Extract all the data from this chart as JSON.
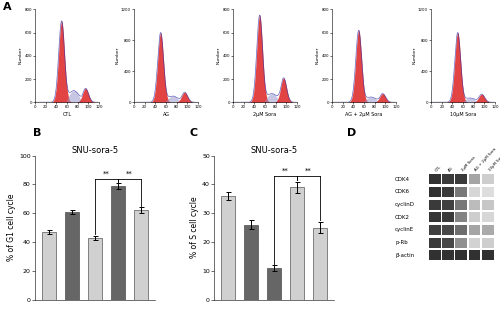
{
  "panel_A_labels": [
    "CTL",
    "AG",
    "2μM Sora",
    "AG + 2μM Sora",
    "10μM Sora"
  ],
  "panel_B_title": "SNU-sora-5",
  "panel_B_ylabel": "% of G1 cell cycle",
  "panel_B_values": [
    47,
    61,
    43,
    79,
    62
  ],
  "panel_B_errors": [
    1.5,
    1.5,
    1.5,
    2.0,
    2.0
  ],
  "panel_B_colors": [
    "#d0d0d0",
    "#666666",
    "#d0d0d0",
    "#666666",
    "#d0d0d0"
  ],
  "panel_B_yticks": [
    0,
    20,
    40,
    60,
    80,
    100
  ],
  "panel_B_ag": [
    "-",
    "+",
    "-",
    "+",
    "-"
  ],
  "panel_B_sora2": [
    "-",
    "-",
    "+",
    "+",
    "-"
  ],
  "panel_B_sora10": [
    "-",
    "-",
    "-",
    "-",
    "+"
  ],
  "panel_C_title": "SNU-sora-5",
  "panel_C_ylabel": "% of S cell cycle",
  "panel_C_values": [
    36,
    26,
    11,
    39,
    25
  ],
  "panel_C_errors": [
    1.5,
    1.5,
    1.0,
    2.0,
    2.0
  ],
  "panel_C_colors": [
    "#d0d0d0",
    "#666666",
    "#666666",
    "#d0d0d0",
    "#d0d0d0"
  ],
  "panel_C_yticks": [
    0,
    10,
    20,
    30,
    40,
    50
  ],
  "panel_C_ag": [
    "-",
    "+",
    "-",
    "+",
    "-"
  ],
  "panel_C_sora2": [
    "-",
    "-",
    "+",
    "+",
    "-"
  ],
  "panel_C_sora10": [
    "-",
    "-",
    "-",
    "-",
    "+"
  ],
  "panel_D_proteins": [
    "CDK4",
    "CDK6",
    "cyclinD",
    "CDK2",
    "cyclinE",
    "p-Rb",
    "β-actin"
  ],
  "panel_D_intensities": [
    [
      0.92,
      0.88,
      0.88,
      0.4,
      0.22
    ],
    [
      0.92,
      0.88,
      0.6,
      0.18,
      0.15
    ],
    [
      0.88,
      0.85,
      0.6,
      0.3,
      0.25
    ],
    [
      0.9,
      0.88,
      0.55,
      0.22,
      0.18
    ],
    [
      0.85,
      0.82,
      0.65,
      0.4,
      0.38
    ],
    [
      0.88,
      0.82,
      0.5,
      0.2,
      0.22
    ],
    [
      0.92,
      0.92,
      0.92,
      0.92,
      0.92
    ]
  ],
  "fcs_yticks_list": [
    [
      0,
      200,
      400,
      600,
      800
    ],
    [
      0,
      400,
      800,
      1200
    ],
    [
      0,
      200,
      400,
      600,
      800
    ],
    [
      0,
      200,
      400,
      600,
      800
    ],
    [
      0,
      400,
      800,
      1200
    ]
  ],
  "fcs_g1_heights": [
    700,
    900,
    750,
    620,
    900
  ],
  "fcs_g2_heights": [
    120,
    130,
    210,
    75,
    105
  ],
  "fcs_s_heights": [
    100,
    80,
    75,
    45,
    55
  ],
  "bar_width": 0.6
}
